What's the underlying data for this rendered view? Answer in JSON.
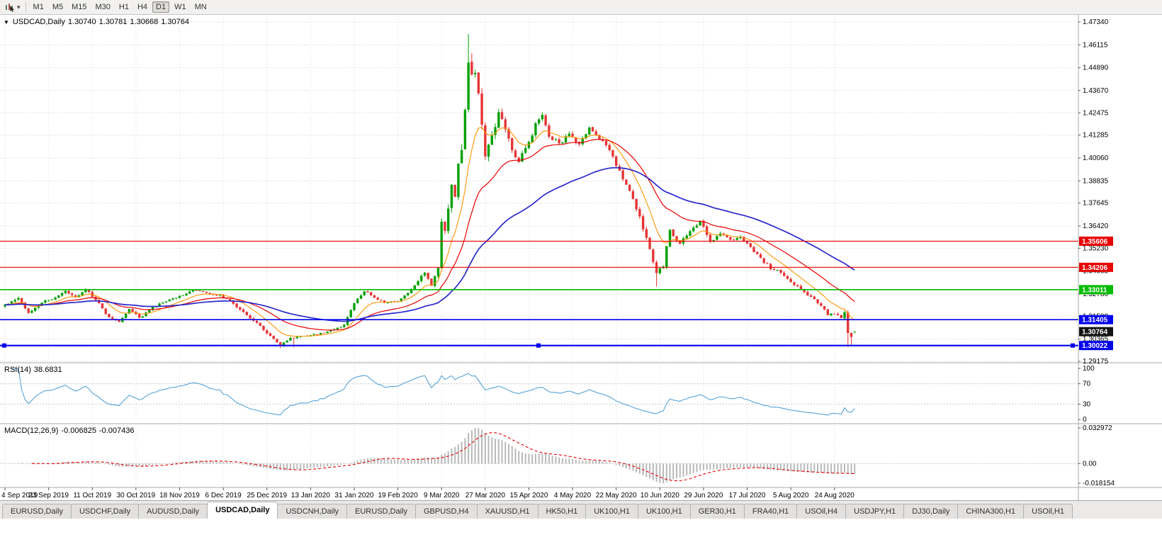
{
  "toolbar": {
    "timeframes": [
      "M1",
      "M5",
      "M15",
      "M30",
      "H1",
      "H4",
      "D1",
      "W1",
      "MN"
    ],
    "active_timeframe": "D1",
    "dropdown_glyph": "▾"
  },
  "chart": {
    "title": {
      "marker": "▼",
      "symbol": "USDCAD,Daily",
      "open": "1.30740",
      "high": "1.30781",
      "low": "1.30668",
      "close": "1.30764"
    },
    "price_axis": {
      "labels": [
        "1.47340",
        "1.46115",
        "1.44890",
        "1.43670",
        "1.42475",
        "1.41285",
        "1.40060",
        "1.38835",
        "1.37645",
        "1.36420",
        "1.35230",
        "1.34005",
        "1.32780",
        "1.31590",
        "1.30365",
        "1.29175"
      ],
      "top_value": 1.4734,
      "bottom_value": 1.29175
    },
    "levels": [
      {
        "value": 1.35606,
        "label": "1.35606",
        "color": "#e80000",
        "width": 1.2,
        "selected": false
      },
      {
        "value": 1.34206,
        "label": "1.34206",
        "color": "#e80000",
        "width": 1.2,
        "selected": false
      },
      {
        "value": 1.33011,
        "label": "1.33011",
        "color": "#00bb00",
        "width": 1.6,
        "selected": false
      },
      {
        "value": 1.31405,
        "label": "1.31405",
        "color": "#0000ee",
        "width": 1.6,
        "selected": false
      },
      {
        "value": 1.30022,
        "label": "1.30022",
        "color": "#0000ee",
        "width": 2.2,
        "selected": true
      }
    ],
    "current_price": {
      "value": 1.30764,
      "label": "1.30764",
      "tag_bg": "#141414"
    },
    "date_axis": [
      "4 Sep 2019",
      "23 Sep 2019",
      "11 Oct 2019",
      "30 Oct 2019",
      "18 Nov 2019",
      "6 Dec 2019",
      "25 Dec 2019",
      "13 Jan 2020",
      "31 Jan 2020",
      "19 Feb 2020",
      "9 Mar 2020",
      "27 Mar 2020",
      "15 Apr 2020",
      "4 May 2020",
      "22 May 2020",
      "10 Jun 2020",
      "29 Jun 2020",
      "17 Jul 2020",
      "5 Aug 2020",
      "24 Aug 2020"
    ],
    "colors": {
      "up": "#00a000",
      "down": "#e53535",
      "ma_fast": "#ff9400",
      "ma_mid": "#e80000",
      "ma_slow": "#2929cc",
      "grid": "#d2d2d2"
    }
  },
  "chart_data": {
    "type": "candlestick",
    "symbol": "USDCAD",
    "timeframe": "Daily",
    "bars": 254,
    "last_candle": {
      "open": 1.3074,
      "high": 1.30781,
      "low": 1.30668,
      "close": 1.30764
    },
    "price_path": [
      [
        0,
        1.322,
        0.0016
      ],
      [
        4,
        1.3258,
        0.0016
      ],
      [
        7,
        1.3178,
        0.0015
      ],
      [
        11,
        1.3232,
        0.0014
      ],
      [
        14,
        1.325,
        0.0014
      ],
      [
        18,
        1.3293,
        0.0013
      ],
      [
        21,
        1.3262,
        0.0013
      ],
      [
        24,
        1.3303,
        0.0013
      ],
      [
        27,
        1.3246,
        0.0014
      ],
      [
        31,
        1.3152,
        0.0015
      ],
      [
        34,
        1.3128,
        0.0014
      ],
      [
        37,
        1.3198,
        0.0014
      ],
      [
        40,
        1.315,
        0.0014
      ],
      [
        44,
        1.3206,
        0.0013
      ],
      [
        48,
        1.3239,
        0.0012
      ],
      [
        52,
        1.3268,
        0.0012
      ],
      [
        56,
        1.3297,
        0.0012
      ],
      [
        60,
        1.3283,
        0.0012
      ],
      [
        64,
        1.3271,
        0.0012
      ],
      [
        68,
        1.3226,
        0.0013
      ],
      [
        72,
        1.3166,
        0.0013
      ],
      [
        76,
        1.3106,
        0.0013
      ],
      [
        80,
        1.3036,
        0.0013
      ],
      [
        82,
        1.2999,
        0.0013
      ],
      [
        85,
        1.3043,
        0.0012
      ],
      [
        89,
        1.3053,
        0.0011
      ],
      [
        93,
        1.3061,
        0.0011
      ],
      [
        97,
        1.3083,
        0.0011
      ],
      [
        101,
        1.3112,
        0.0012
      ],
      [
        104,
        1.3229,
        0.0012
      ],
      [
        107,
        1.3293,
        0.0012
      ],
      [
        110,
        1.3259,
        0.0012
      ],
      [
        113,
        1.3231,
        0.0011
      ],
      [
        117,
        1.3239,
        0.0011
      ],
      [
        120,
        1.3283,
        0.0013
      ],
      [
        123,
        1.3346,
        0.0015
      ],
      [
        125,
        1.3393,
        0.0016
      ],
      [
        127,
        1.3323,
        0.0018
      ],
      [
        129,
        1.3419,
        0.0024
      ],
      [
        130,
        1.3661,
        0.004
      ],
      [
        131,
        1.3619,
        0.0042
      ],
      [
        132,
        1.3733,
        0.0044
      ],
      [
        133,
        1.3859,
        0.0048
      ],
      [
        134,
        1.3799,
        0.005
      ],
      [
        135,
        1.3976,
        0.0054
      ],
      [
        136,
        1.4049,
        0.0058
      ],
      [
        137,
        1.4269,
        0.0064
      ],
      [
        138,
        1.4512,
        0.0074
      ],
      [
        139,
        1.4449,
        0.0082
      ],
      [
        140,
        1.4466,
        0.0062
      ],
      [
        141,
        1.4351,
        0.0058
      ],
      [
        142,
        1.4181,
        0.0054
      ],
      [
        143,
        1.4016,
        0.005
      ],
      [
        145,
        1.4131,
        0.0044
      ],
      [
        147,
        1.4249,
        0.004
      ],
      [
        149,
        1.4163,
        0.0038
      ],
      [
        151,
        1.4049,
        0.0036
      ],
      [
        153,
        1.3986,
        0.0034
      ],
      [
        156,
        1.4089,
        0.0032
      ],
      [
        158,
        1.4189,
        0.0031
      ],
      [
        160,
        1.4233,
        0.003
      ],
      [
        162,
        1.4121,
        0.0029
      ],
      [
        165,
        1.4083,
        0.0028
      ],
      [
        168,
        1.4133,
        0.0026
      ],
      [
        171,
        1.4079,
        0.0026
      ],
      [
        174,
        1.4169,
        0.0025
      ],
      [
        177,
        1.4109,
        0.0024
      ],
      [
        180,
        1.4049,
        0.0024
      ],
      [
        182,
        1.3966,
        0.0024
      ],
      [
        185,
        1.3863,
        0.0024
      ],
      [
        188,
        1.3733,
        0.0025
      ],
      [
        191,
        1.3579,
        0.0026
      ],
      [
        194,
        1.3389,
        0.0028
      ],
      [
        196,
        1.3426,
        0.0025
      ],
      [
        198,
        1.3623,
        0.0024
      ],
      [
        201,
        1.3546,
        0.0022
      ],
      [
        204,
        1.3613,
        0.0021
      ],
      [
        207,
        1.3669,
        0.0021
      ],
      [
        210,
        1.3559,
        0.0021
      ],
      [
        213,
        1.3603,
        0.0019
      ],
      [
        216,
        1.3569,
        0.0019
      ],
      [
        219,
        1.3583,
        0.0018
      ],
      [
        222,
        1.3529,
        0.0018
      ],
      [
        225,
        1.3469,
        0.0018
      ],
      [
        228,
        1.3413,
        0.0017
      ],
      [
        231,
        1.3393,
        0.0016
      ],
      [
        234,
        1.3343,
        0.0016
      ],
      [
        237,
        1.3303,
        0.0016
      ],
      [
        240,
        1.3263,
        0.0015
      ],
      [
        243,
        1.3213,
        0.0015
      ],
      [
        245,
        1.3166,
        0.0014
      ],
      [
        247,
        1.3173,
        0.0013
      ],
      [
        249,
        1.3149,
        0.0013
      ],
      [
        250,
        1.3179,
        0.0013
      ],
      [
        251,
        1.3069,
        0.0028
      ],
      [
        252,
        1.3049,
        0.0012
      ],
      [
        253,
        1.30764,
        0.0008
      ]
    ],
    "wick_pins": [
      [
        82,
        "lo",
        1.2988
      ],
      [
        86,
        "lo",
        1.2992
      ],
      [
        138,
        "hi",
        1.4669
      ],
      [
        139,
        "hi",
        1.4566
      ],
      [
        194,
        "lo",
        1.3318
      ],
      [
        251,
        "lo",
        1.2994
      ],
      [
        252,
        "lo",
        1.3006
      ]
    ],
    "moving_averages": [
      {
        "name": "fast",
        "period": 10,
        "color": "#ff9400"
      },
      {
        "name": "mid",
        "period": 25,
        "color": "#e80000"
      },
      {
        "name": "slow",
        "period": 60,
        "color": "#2929cc"
      }
    ],
    "seed": 1234567
  },
  "rsi": {
    "label": "RSI(14)",
    "value": "38.6831",
    "period": 14,
    "levels": [
      "100",
      "70",
      "30",
      "0"
    ],
    "line_color": "#55a3d8"
  },
  "macd": {
    "label": "MACD(12,26,9)",
    "main_value": "-0.006825",
    "signal_value": "-0.007436",
    "axis": [
      "0.032972",
      "0.00",
      "-0.018154"
    ],
    "axis_max": 0.032972,
    "axis_min": -0.018154,
    "histogram_color": "#b8b8b8",
    "signal_color": "#e80000"
  },
  "tabs": {
    "items": [
      "EURUSD,Daily",
      "USDCHF,Daily",
      "AUDUSD,Daily",
      "USDCAD,Daily",
      "USDCNH,Daily",
      "EURUSD,Daily",
      "GBPUSD,H4",
      "XAUUSD,H1",
      "HK50,H1",
      "UK100,H1",
      "UK100,H1",
      "GER30,H1",
      "FRA40,H1",
      "USOil,H4",
      "USDJPY,H1",
      "DJ30,Daily",
      "CHINA300,H1",
      "USOil,H1"
    ],
    "active_index": 3
  }
}
